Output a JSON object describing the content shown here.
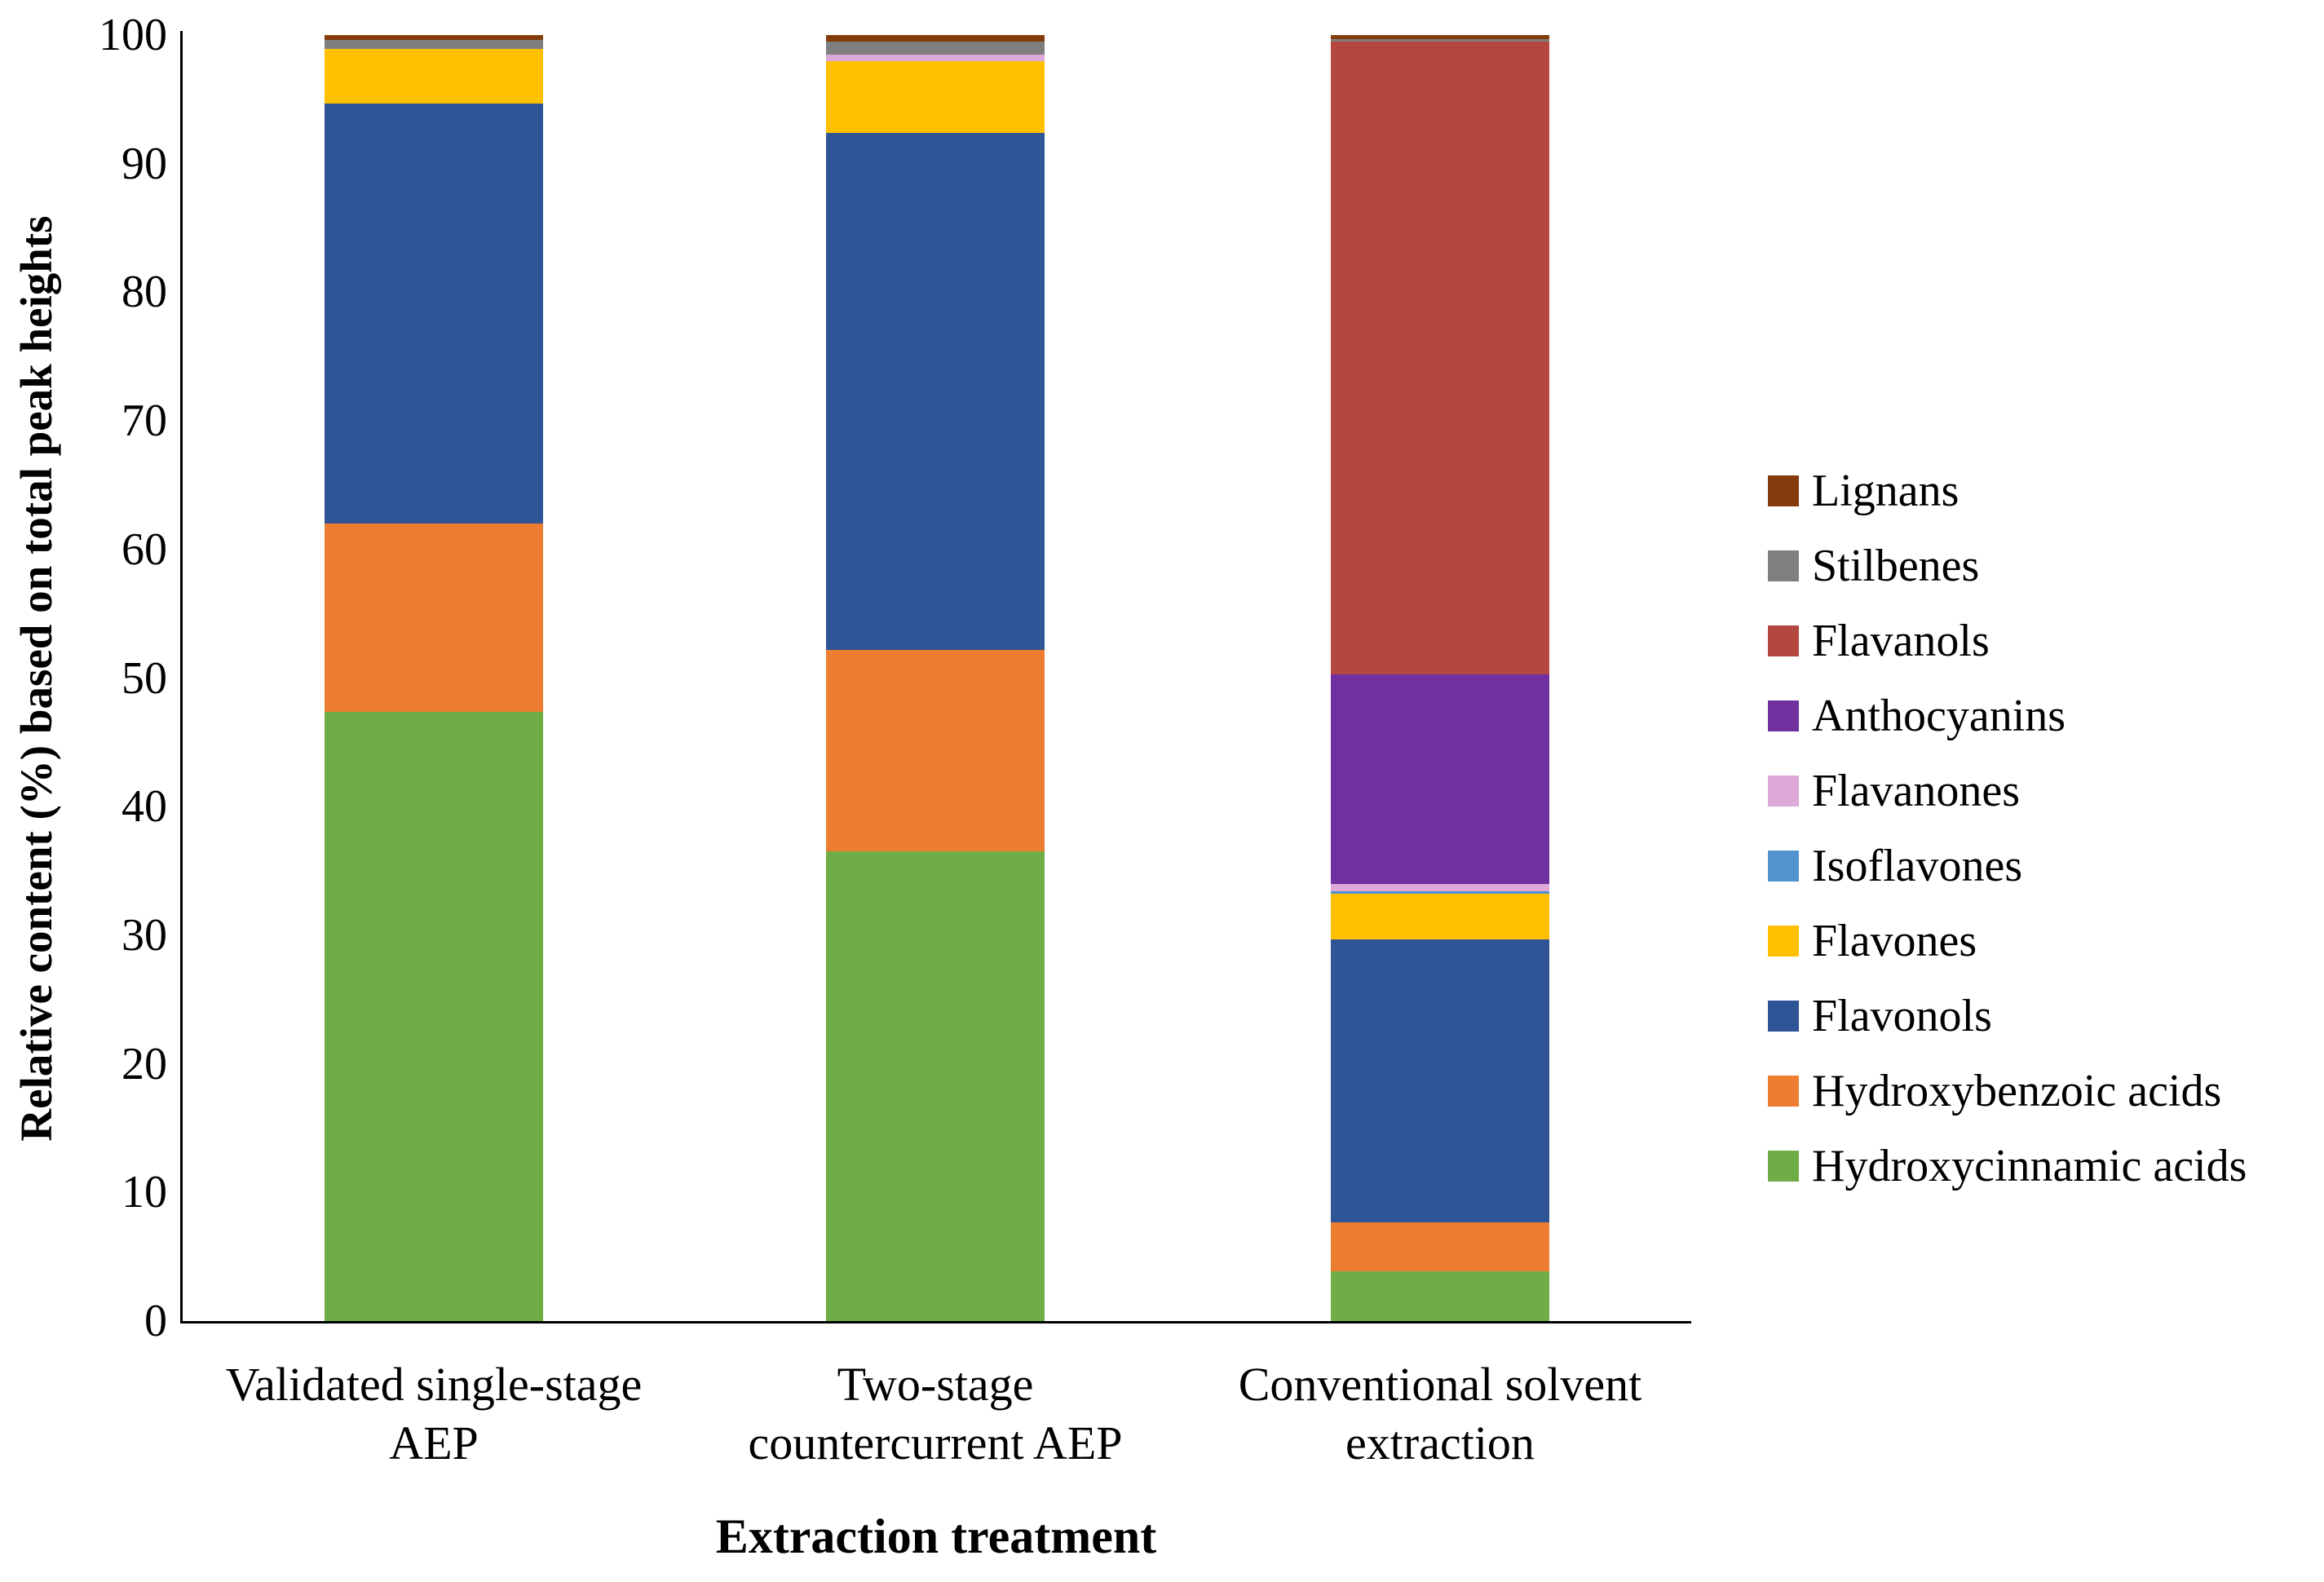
{
  "chart_data": {
    "type": "bar",
    "stacked": true,
    "orientation": "vertical",
    "xlabel": "Extraction treatment",
    "ylabel": "Relative content (%) based on total peak heights",
    "ylim": [
      0,
      100
    ],
    "yticks": [
      0,
      10,
      20,
      30,
      40,
      50,
      60,
      70,
      80,
      90,
      100
    ],
    "grid": false,
    "legend_position": "right",
    "categories": [
      "Validated single-stage AEP",
      "Two-stage countercurrent AEP",
      "Conventional solvent extraction"
    ],
    "categories_lines": [
      [
        "Validated single-stage",
        "AEP"
      ],
      [
        "Two-stage",
        "countercurrent AEP"
      ],
      [
        "Conventional solvent",
        "extraction"
      ]
    ],
    "series": [
      {
        "name": "Hydroxycinnamic acids",
        "color": "#70AD47",
        "values": [
          47.4,
          36.5,
          3.9
        ]
      },
      {
        "name": "Hydroxybenzoic acids",
        "color": "#ED7D31",
        "values": [
          14.6,
          15.7,
          3.8
        ]
      },
      {
        "name": "Flavonols",
        "color": "#2F5597",
        "values": [
          32.7,
          40.2,
          22.0
        ]
      },
      {
        "name": "Flavones",
        "color": "#FFC000",
        "values": [
          4.2,
          5.6,
          3.5
        ]
      },
      {
        "name": "Isoflavones",
        "color": "#5293CF",
        "values": [
          0,
          0,
          0.25
        ]
      },
      {
        "name": "Flavanones",
        "color": "#DCA9D8",
        "values": [
          0,
          0.5,
          0.55
        ]
      },
      {
        "name": "Anthocyanins",
        "color": "#7030A0",
        "values": [
          0,
          0,
          16.3
        ]
      },
      {
        "name": "Flavanols",
        "color": "#B4473F",
        "values": [
          0,
          0,
          49.2
        ]
      },
      {
        "name": "Stilbenes",
        "color": "#7F7F7F",
        "values": [
          0.75,
          1.0,
          0.2
        ]
      },
      {
        "name": "Lignans",
        "color": "#843C0C",
        "values": [
          0.35,
          0.5,
          0.3
        ]
      }
    ],
    "legend_order_top_to_bottom": [
      "Lignans",
      "Stilbenes",
      "Flavanols",
      "Anthocyanins",
      "Flavanones",
      "Isoflavones",
      "Flavones",
      "Flavonols",
      "Hydroxybenzoic acids",
      "Hydroxycinnamic acids"
    ]
  }
}
